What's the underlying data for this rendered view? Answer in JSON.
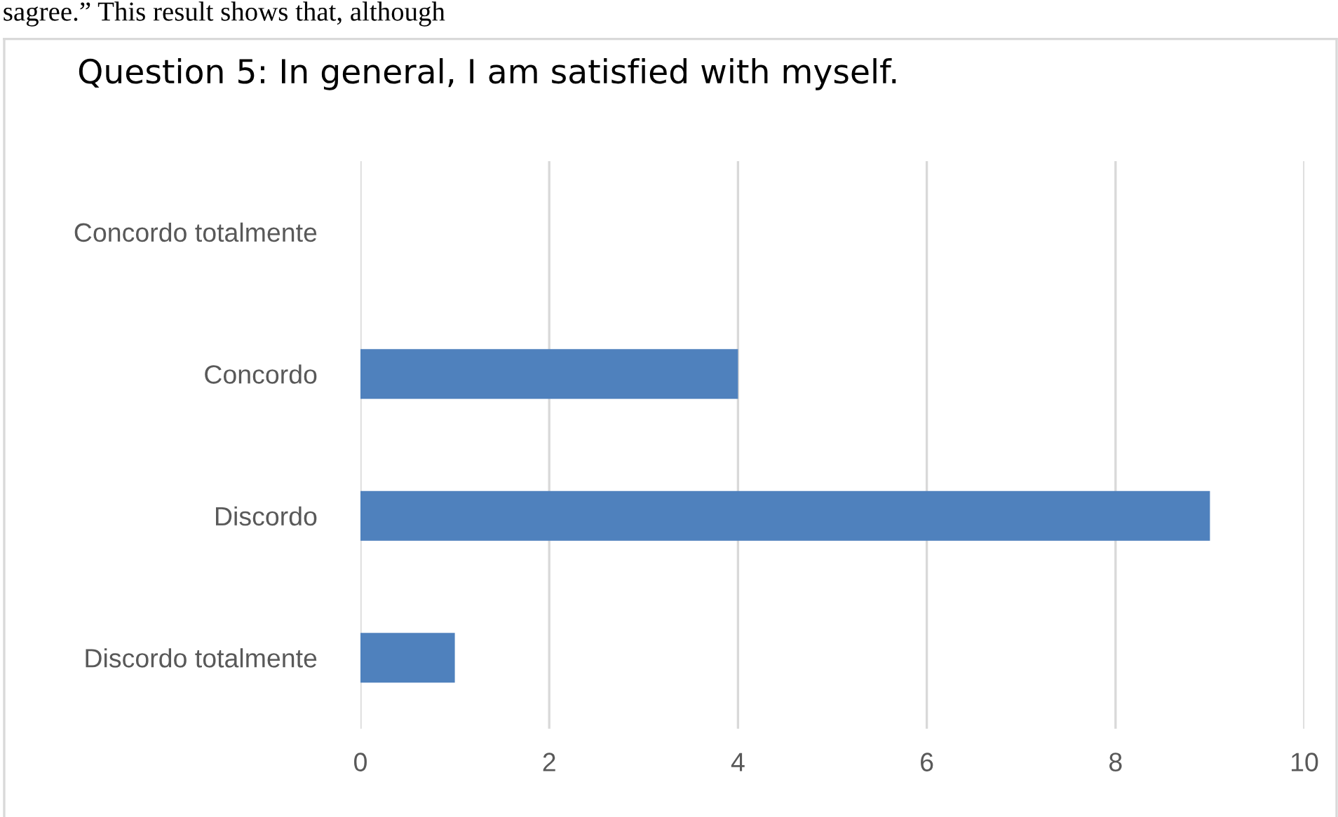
{
  "chart_data": {
    "type": "bar",
    "orientation": "horizontal",
    "title": "Question 5: In general, I am satisfied with myself.",
    "categories": [
      "Concordo totalmente",
      "Concordo",
      "Discordo",
      "Discordo totalmente"
    ],
    "values": [
      0,
      4,
      9,
      1
    ],
    "color": "#4f81bd",
    "xlim": [
      0,
      10
    ],
    "xticks": [
      0,
      2,
      4,
      6,
      8,
      10
    ],
    "grid": "x",
    "annotations": [
      "sagree.” This result shows that, although"
    ]
  }
}
